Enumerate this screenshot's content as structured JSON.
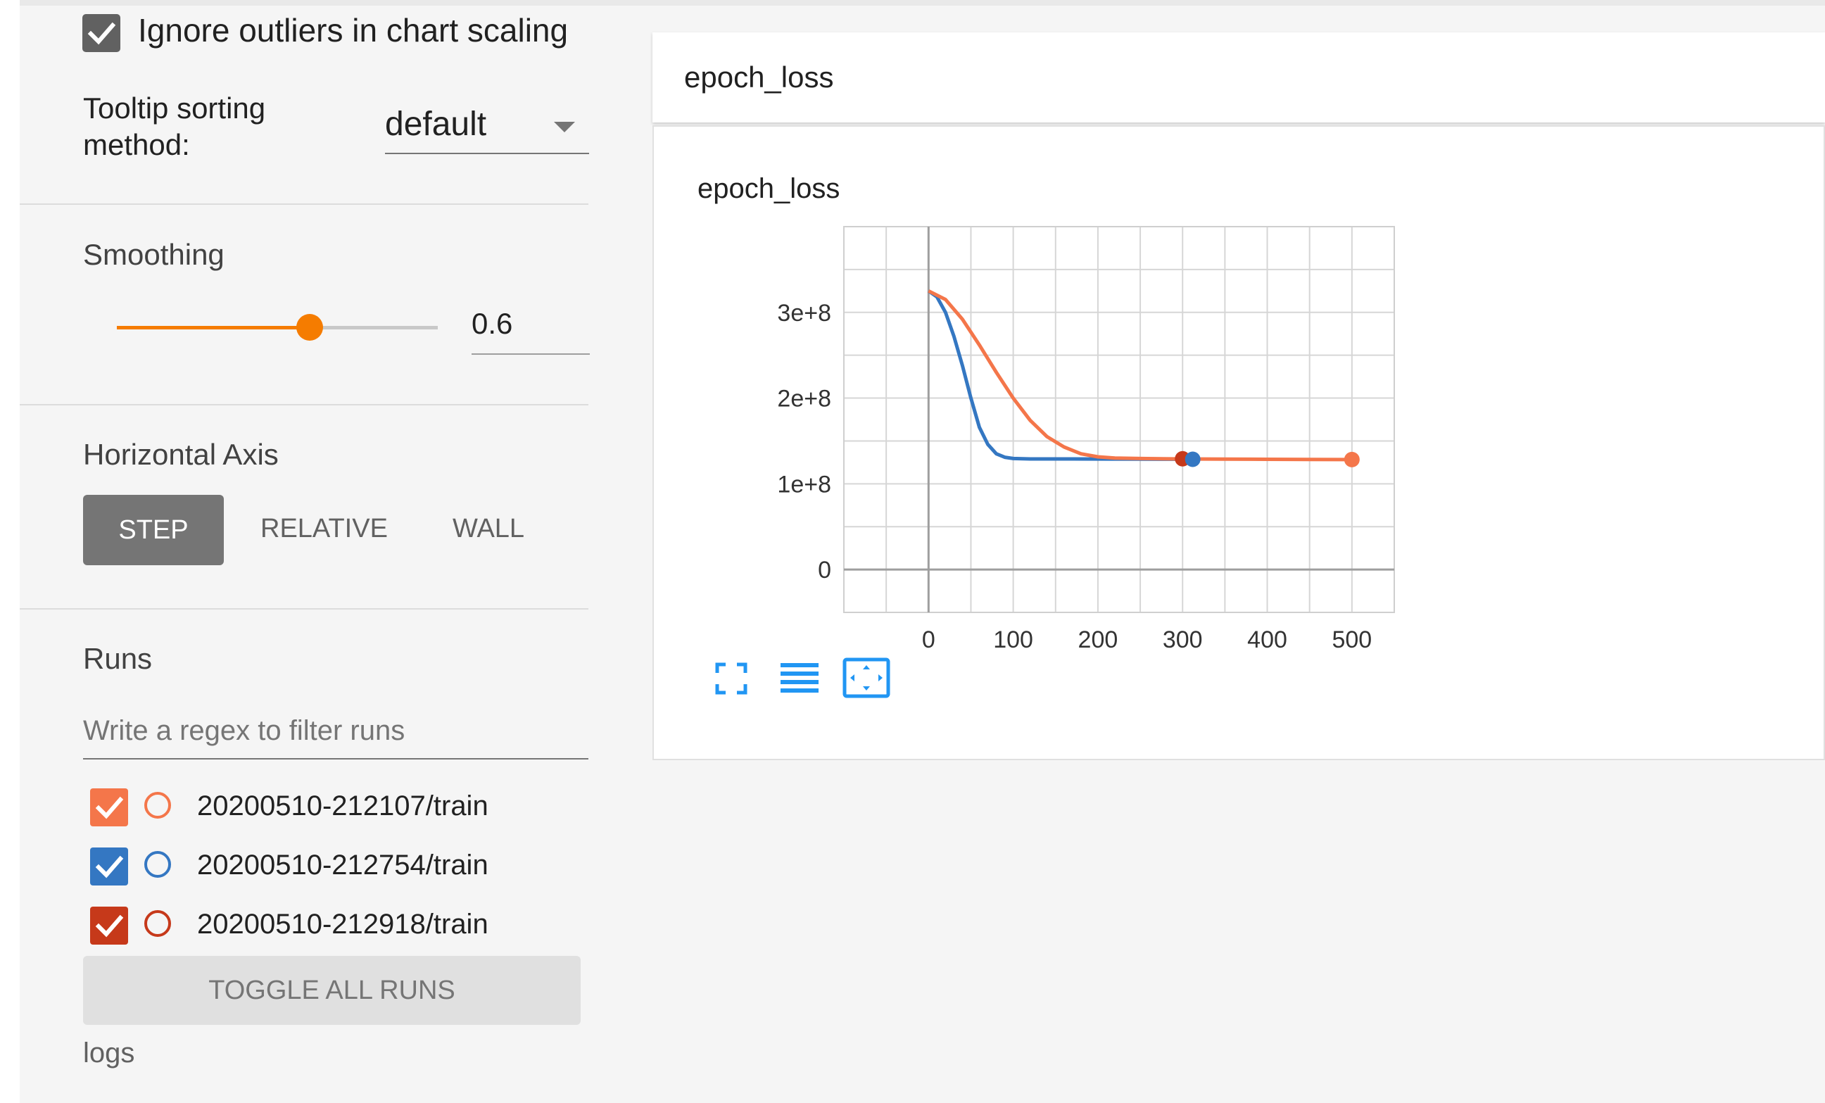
{
  "sidebar": {
    "ignore_outliers": {
      "label": "Ignore outliers in chart scaling",
      "checked": true
    },
    "tooltip_sorting": {
      "label": "Tooltip sorting method:",
      "value": "default"
    },
    "smoothing": {
      "label": "Smoothing",
      "value": "0.6",
      "fraction": 0.6
    },
    "horizontal_axis": {
      "label": "Horizontal Axis",
      "options": [
        "STEP",
        "RELATIVE",
        "WALL"
      ],
      "selected": "STEP"
    },
    "runs": {
      "label": "Runs",
      "filter_placeholder": "Write a regex to filter runs",
      "items": [
        {
          "name": "20200510-212107/train",
          "color": "#f4764a",
          "checked": true
        },
        {
          "name": "20200510-212754/train",
          "color": "#3477c2",
          "checked": true
        },
        {
          "name": "20200510-212918/train",
          "color": "#c6391a",
          "checked": true
        }
      ],
      "toggle_all_label": "TOGGLE ALL RUNS",
      "logdir": "logs"
    }
  },
  "card": {
    "header_title": "epoch_loss",
    "toolbar_icons": [
      "fullscreen-icon",
      "data-table-icon",
      "fit-domain-icon"
    ]
  },
  "chart_data": {
    "type": "line",
    "title": "epoch_loss",
    "xlabel": "",
    "ylabel": "",
    "x_ticks": [
      "0",
      "100",
      "200",
      "300",
      "400",
      "500"
    ],
    "y_ticks": [
      "0",
      "1e+8",
      "2e+8",
      "3e+8"
    ],
    "xlim": [
      -100,
      550
    ],
    "ylim": [
      -50000000,
      400000000
    ],
    "grid": true,
    "legend": "none",
    "series": [
      {
        "color": "#f4764a",
        "x": [
          0,
          20,
          40,
          60,
          80,
          100,
          120,
          140,
          160,
          180,
          200,
          220,
          250,
          300,
          350,
          400,
          450,
          500
        ],
        "y": [
          325000000,
          315000000,
          292000000,
          262000000,
          230000000,
          200000000,
          174000000,
          155000000,
          143000000,
          135000000,
          131500000,
          130000000,
          129500000,
          129000000,
          128800000,
          128600000,
          128400000,
          128300000
        ]
      },
      {
        "color": "#3477c2",
        "x": [
          0,
          10,
          20,
          30,
          40,
          50,
          60,
          70,
          80,
          90,
          100,
          120,
          150,
          200,
          250,
          300,
          312
        ],
        "y": [
          325000000,
          318000000,
          300000000,
          272000000,
          238000000,
          200000000,
          166000000,
          146000000,
          135000000,
          131000000,
          129500000,
          129000000,
          129000000,
          128900000,
          128800000,
          128700000,
          128600000
        ]
      },
      {
        "color": "#c6391a",
        "x": [
          300
        ],
        "y": [
          129200000
        ]
      }
    ]
  }
}
